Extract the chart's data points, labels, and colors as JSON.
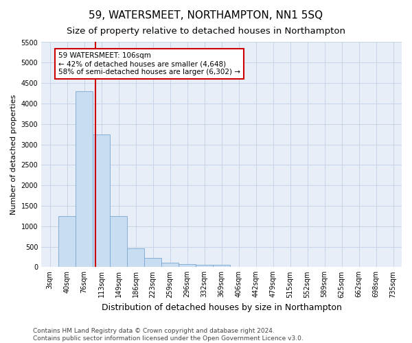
{
  "title": "59, WATERSMEET, NORTHAMPTON, NN1 5SQ",
  "subtitle": "Size of property relative to detached houses in Northampton",
  "xlabel": "Distribution of detached houses by size in Northampton",
  "ylabel": "Number of detached properties",
  "categories": [
    "3sqm",
    "40sqm",
    "76sqm",
    "113sqm",
    "149sqm",
    "186sqm",
    "223sqm",
    "259sqm",
    "296sqm",
    "332sqm",
    "369sqm",
    "406sqm",
    "442sqm",
    "479sqm",
    "515sqm",
    "552sqm",
    "589sqm",
    "625sqm",
    "662sqm",
    "698sqm",
    "735sqm"
  ],
  "values": [
    0,
    1250,
    4300,
    3250,
    1250,
    450,
    225,
    100,
    75,
    50,
    50,
    0,
    0,
    0,
    0,
    0,
    0,
    0,
    0,
    0,
    0
  ],
  "bar_color": "#c9ddf2",
  "bar_edge_color": "#7ba7d0",
  "vline_x_index": 2.65,
  "vline_color": "#cc0000",
  "annotation_text": "59 WATERSMEET: 106sqm\n← 42% of detached houses are smaller (4,648)\n58% of semi-detached houses are larger (6,302) →",
  "annotation_box_color": "#ffffff",
  "annotation_box_edge": "#cc0000",
  "ylim_max": 5500,
  "yticks": [
    0,
    500,
    1000,
    1500,
    2000,
    2500,
    3000,
    3500,
    4000,
    4500,
    5000,
    5500
  ],
  "footer_line1": "Contains HM Land Registry data © Crown copyright and database right 2024.",
  "footer_line2": "Contains public sector information licensed under the Open Government Licence v3.0.",
  "bg_color": "#ffffff",
  "plot_bg_color": "#e8eef8",
  "grid_color": "#c8d4e8",
  "title_fontsize": 11,
  "subtitle_fontsize": 9.5,
  "ylabel_fontsize": 8,
  "xlabel_fontsize": 9,
  "tick_fontsize": 7,
  "footer_fontsize": 6.5,
  "annot_fontsize": 7.5
}
